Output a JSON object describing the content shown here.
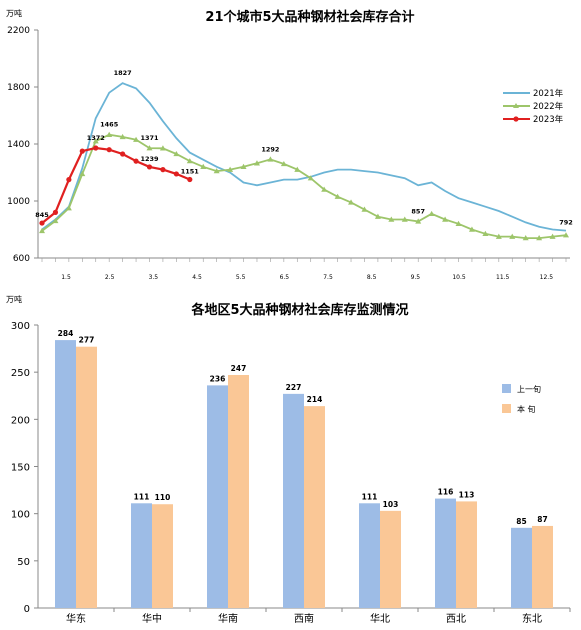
{
  "chart_data": [
    {
      "type": "line",
      "title": "21个城市5大品种钢材社会库存合计",
      "ylabel": "万吨",
      "ylim": [
        600,
        2200
      ],
      "yticks": [
        600,
        1000,
        1400,
        1800,
        2200
      ],
      "xticks": [
        "1.5",
        "2.5",
        "3.5",
        "4.5",
        "5.5",
        "6.5",
        "7.5",
        "8.5",
        "9.5",
        "10.5",
        "11.5",
        "12.5"
      ],
      "legend": "right",
      "series": [
        {
          "name": "2021年",
          "color": "#6BB4D6",
          "marker": "none",
          "values": [
            800,
            870,
            960,
            1230,
            1580,
            1760,
            1827,
            1790,
            1690,
            1560,
            1440,
            1340,
            1290,
            1240,
            1200,
            1130,
            1110,
            1130,
            1150,
            1150,
            1170,
            1200,
            1220,
            1220,
            1210,
            1200,
            1180,
            1160,
            1110,
            1130,
            1070,
            1020,
            990,
            960,
            930,
            890,
            850,
            820,
            800,
            792
          ]
        },
        {
          "name": "2022年",
          "color": "#9DC56A",
          "marker": "triangle",
          "values": [
            790,
            860,
            950,
            1190,
            1420,
            1465,
            1450,
            1430,
            1371,
            1370,
            1330,
            1280,
            1240,
            1210,
            1220,
            1240,
            1265,
            1292,
            1260,
            1220,
            1160,
            1080,
            1030,
            990,
            940,
            890,
            870,
            870,
            857,
            910,
            870,
            840,
            800,
            770,
            750,
            750,
            740,
            740,
            750,
            760
          ]
        },
        {
          "name": "2023年",
          "color": "#E02020",
          "marker": "circle",
          "values": [
            845,
            920,
            1150,
            1350,
            1372,
            1360,
            1330,
            1280,
            1239,
            1220,
            1190,
            1151
          ]
        }
      ],
      "data_labels": [
        "845",
        "1372",
        "1827",
        "1465",
        "1371",
        "1239",
        "1151",
        "1292",
        "857",
        "792"
      ]
    },
    {
      "type": "bar",
      "title": "各地区5大品种钢材社会库存监测情况",
      "ylabel": "万吨",
      "ylim": [
        0,
        300
      ],
      "yticks": [
        0,
        50,
        100,
        150,
        200,
        250,
        300
      ],
      "categories": [
        "华东",
        "华中",
        "华南",
        "西南",
        "华北",
        "西北",
        "东北"
      ],
      "legend": "right",
      "series": [
        {
          "name": "上一旬",
          "color": "#9DBCE6",
          "values": [
            284,
            111,
            236,
            227,
            111,
            116,
            85
          ]
        },
        {
          "name": "本  旬",
          "color": "#FAC796",
          "values": [
            277,
            110,
            247,
            214,
            103,
            113,
            87
          ]
        }
      ]
    }
  ]
}
